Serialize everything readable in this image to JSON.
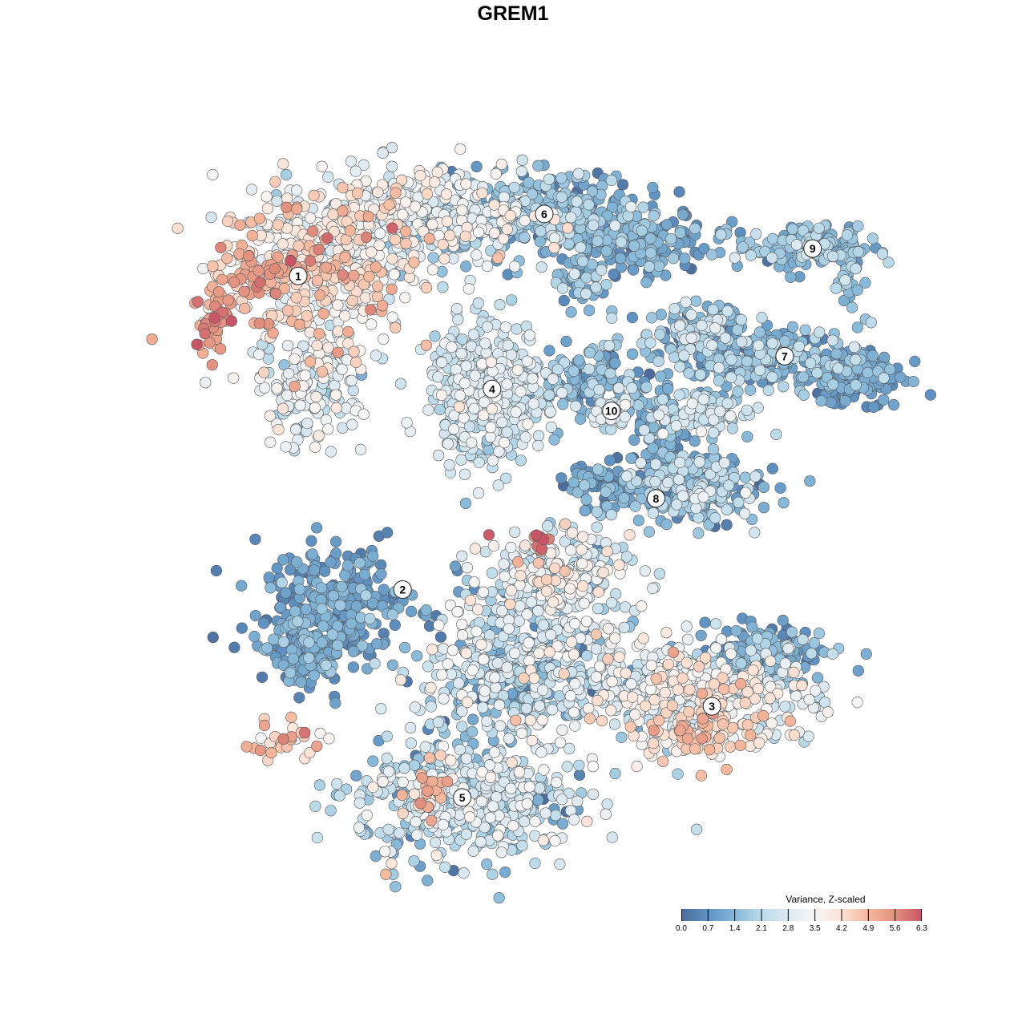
{
  "chart_data": {
    "type": "scatter",
    "title": "GREM1",
    "xlabel": "",
    "ylabel": "",
    "xlim": [
      -10,
      10
    ],
    "ylim": [
      -10,
      10
    ],
    "grid": false,
    "note": "Embedding scatter approximated as gaussian blobs of points; each blob has a center, spread, point count, and mean/sd of the colour value.",
    "colorbar": {
      "title": "Variance, Z-scaled",
      "ticks": [
        "0.0",
        "0.7",
        "1.4",
        "2.1",
        "2.8",
        "3.5",
        "4.2",
        "4.9",
        "5.6",
        "6.3"
      ],
      "range": [
        0,
        6.3
      ],
      "colors": [
        "#4b6c9c",
        "#5f92c2",
        "#86b8d8",
        "#bcdbea",
        "#dde9f1",
        "#f7f6f5",
        "#fce2d5",
        "#f4b79c",
        "#e3907f",
        "#c85565"
      ],
      "placement": "bottom-right"
    },
    "cluster_labels": [
      {
        "label": "1",
        "x": -6.3,
        "y": 6.5
      },
      {
        "label": "2",
        "x": -3.5,
        "y": -2.1
      },
      {
        "label": "3",
        "x": 4.8,
        "y": -5.3
      },
      {
        "label": "4",
        "x": -1.1,
        "y": 3.4
      },
      {
        "label": "5",
        "x": -1.9,
        "y": -7.8
      },
      {
        "label": "6",
        "x": 0.3,
        "y": 8.2
      },
      {
        "label": "7",
        "x": 6.75,
        "y": 4.3
      },
      {
        "label": "8",
        "x": 3.3,
        "y": 0.4
      },
      {
        "label": "9",
        "x": 7.5,
        "y": 7.25
      },
      {
        "label": "10",
        "x": 2.1,
        "y": 2.8
      }
    ],
    "blobs": [
      {
        "cluster": "1",
        "x": -5.9,
        "y": 6.6,
        "sx": 1.5,
        "sy": 1.4,
        "n": 420,
        "mean": 3.9,
        "sd": 0.8
      },
      {
        "cluster": "1",
        "x": -8.6,
        "y": 5.3,
        "sx": 0.35,
        "sy": 0.5,
        "n": 45,
        "mean": 5.4,
        "sd": 0.6
      },
      {
        "cluster": "1",
        "x": -7.4,
        "y": 6.6,
        "sx": 0.6,
        "sy": 0.5,
        "n": 60,
        "mean": 4.8,
        "sd": 0.5
      },
      {
        "cluster": "1",
        "x": -6.0,
        "y": 3.4,
        "sx": 0.8,
        "sy": 0.9,
        "n": 140,
        "mean": 2.8,
        "sd": 0.6
      },
      {
        "cluster": "1",
        "x": -3.2,
        "y": 8.0,
        "sx": 1.7,
        "sy": 0.8,
        "n": 380,
        "mean": 3.0,
        "sd": 0.7
      },
      {
        "cluster": "6",
        "x": 0.4,
        "y": 8.2,
        "sx": 1.6,
        "sy": 0.7,
        "n": 330,
        "mean": 1.4,
        "sd": 0.6
      },
      {
        "cluster": "6",
        "x": 2.9,
        "y": 7.4,
        "sx": 1.0,
        "sy": 0.5,
        "n": 160,
        "mean": 1.0,
        "sd": 0.5
      },
      {
        "cluster": "6",
        "x": 1.3,
        "y": 6.4,
        "sx": 0.4,
        "sy": 0.6,
        "n": 50,
        "mean": 1.3,
        "sd": 0.5
      },
      {
        "cluster": "4",
        "x": -1.2,
        "y": 3.3,
        "sx": 0.9,
        "sy": 1.1,
        "n": 420,
        "mean": 2.5,
        "sd": 0.5
      },
      {
        "cluster": "10",
        "x": 1.5,
        "y": 3.6,
        "sx": 1.1,
        "sy": 0.5,
        "n": 160,
        "mean": 1.2,
        "sd": 0.5
      },
      {
        "cluster": "10",
        "x": 2.1,
        "y": 2.7,
        "sx": 0.3,
        "sy": 0.3,
        "n": 35,
        "mean": 2.6,
        "sd": 0.4
      },
      {
        "cluster": "9",
        "x": 7.3,
        "y": 7.3,
        "sx": 1.1,
        "sy": 0.35,
        "n": 150,
        "mean": 1.5,
        "sd": 0.5
      },
      {
        "cluster": "9",
        "x": 8.5,
        "y": 6.6,
        "sx": 0.2,
        "sy": 0.5,
        "n": 30,
        "mean": 1.6,
        "sd": 0.4
      },
      {
        "cluster": "7",
        "x": 6.3,
        "y": 4.3,
        "sx": 1.6,
        "sy": 0.5,
        "n": 250,
        "mean": 1.4,
        "sd": 0.6
      },
      {
        "cluster": "7",
        "x": 8.6,
        "y": 3.7,
        "sx": 0.8,
        "sy": 0.4,
        "n": 130,
        "mean": 0.8,
        "sd": 0.4
      },
      {
        "cluster": "7",
        "x": 4.3,
        "y": 5.1,
        "sx": 0.8,
        "sy": 0.4,
        "n": 100,
        "mean": 1.7,
        "sd": 0.6
      },
      {
        "cluster": "7",
        "x": 4.6,
        "y": 2.8,
        "sx": 0.8,
        "sy": 0.35,
        "n": 100,
        "mean": 2.2,
        "sd": 0.6
      },
      {
        "cluster": "8",
        "x": 4.4,
        "y": 0.7,
        "sx": 1.0,
        "sy": 0.6,
        "n": 230,
        "mean": 1.5,
        "sd": 0.7
      },
      {
        "cluster": "8",
        "x": 3.5,
        "y": 1.8,
        "sx": 0.4,
        "sy": 0.8,
        "n": 90,
        "mean": 0.9,
        "sd": 0.4
      },
      {
        "cluster": "8",
        "x": 2.2,
        "y": 0.7,
        "sx": 0.9,
        "sy": 0.4,
        "n": 90,
        "mean": 1.0,
        "sd": 0.5
      },
      {
        "cluster": "2",
        "x": -5.4,
        "y": -2.6,
        "sx": 1.2,
        "sy": 1.0,
        "n": 300,
        "mean": 0.9,
        "sd": 0.4
      },
      {
        "cluster": "2",
        "x": -6.1,
        "y": -3.9,
        "sx": 0.6,
        "sy": 0.5,
        "n": 100,
        "mean": 0.9,
        "sd": 0.4
      },
      {
        "cluster": "3",
        "x": 0.6,
        "y": -1.9,
        "sx": 1.2,
        "sy": 0.8,
        "n": 300,
        "mean": 2.8,
        "sd": 0.8
      },
      {
        "cluster": "3",
        "x": 0.2,
        "y": -0.8,
        "sx": 0.15,
        "sy": 0.15,
        "n": 10,
        "mean": 5.8,
        "sd": 0.3
      },
      {
        "cluster": "5",
        "x": -0.5,
        "y": -4.3,
        "sx": 1.5,
        "sy": 1.1,
        "n": 450,
        "mean": 2.2,
        "sd": 0.9
      },
      {
        "cluster": "3",
        "x": 4.4,
        "y": -4.9,
        "sx": 1.8,
        "sy": 0.8,
        "n": 420,
        "mean": 3.1,
        "sd": 0.8
      },
      {
        "cluster": "3",
        "x": 6.2,
        "y": -3.9,
        "sx": 0.9,
        "sy": 0.5,
        "n": 160,
        "mean": 1.1,
        "sd": 0.5
      },
      {
        "cluster": "3",
        "x": 4.6,
        "y": -6.0,
        "sx": 1.1,
        "sy": 0.4,
        "n": 100,
        "mean": 4.3,
        "sd": 0.5
      },
      {
        "cluster": "5",
        "x": -1.8,
        "y": -7.9,
        "sx": 1.7,
        "sy": 1.0,
        "n": 520,
        "mean": 2.3,
        "sd": 0.8
      },
      {
        "cluster": "5",
        "x": -2.8,
        "y": -7.6,
        "sx": 0.3,
        "sy": 0.4,
        "n": 20,
        "mean": 4.8,
        "sd": 0.4
      },
      {
        "cluster": "island",
        "x": -6.6,
        "y": -6.3,
        "sx": 0.7,
        "sy": 0.3,
        "n": 30,
        "mean": 4.6,
        "sd": 0.6
      }
    ]
  }
}
